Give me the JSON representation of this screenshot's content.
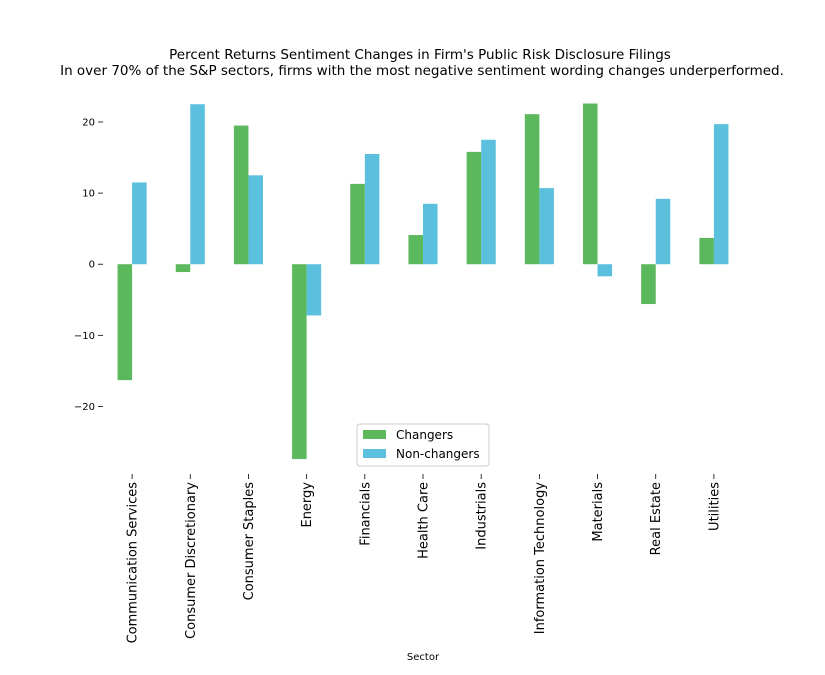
{
  "chart_data": {
    "type": "bar",
    "title": "Percent Returns Sentiment Changes in Firm's Public Risk Disclosure Filings",
    "subtitle": "In over 70% of the S&P sectors, firms with the most negative sentiment wording changes underperformed.",
    "xlabel": "Sector",
    "ylabel": "",
    "ylim": [
      -29.5,
      24.5
    ],
    "yticks": [
      -20,
      -10,
      0,
      10,
      20
    ],
    "grid": false,
    "legend_position": "bottom-center",
    "categories": [
      "Communication Services",
      "Consumer Discretionary",
      "Consumer Staples",
      "Energy",
      "Financials",
      "Health Care",
      "Industrials",
      "Information Technology",
      "Materials",
      "Real Estate",
      "Utilities"
    ],
    "series": [
      {
        "name": "Changers",
        "color": "#5cb85c",
        "values": [
          -16.3,
          -1.1,
          19.5,
          -27.4,
          11.3,
          4.1,
          15.8,
          21.1,
          22.6,
          -5.6,
          3.7
        ]
      },
      {
        "name": "Non-changers",
        "color": "#5bc0de",
        "values": [
          11.5,
          22.5,
          12.5,
          -7.2,
          15.5,
          8.5,
          17.5,
          10.7,
          -1.7,
          9.2,
          19.7
        ]
      }
    ]
  }
}
